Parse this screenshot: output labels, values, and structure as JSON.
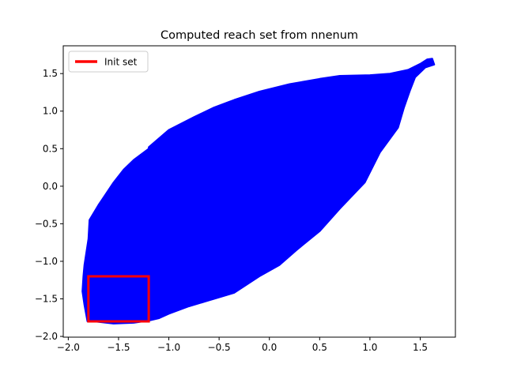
{
  "chart_data": {
    "type": "area",
    "title": "Computed reach set from nnenum",
    "xlabel": "",
    "ylabel": "",
    "xlim": [
      -2.05,
      1.85
    ],
    "ylim": [
      -2.01,
      1.87
    ],
    "xticks": [
      -2.0,
      -1.5,
      -1.0,
      -0.5,
      0.0,
      0.5,
      1.0,
      1.5
    ],
    "xtick_labels": [
      "−2.0",
      "−1.5",
      "−1.0",
      "−0.5",
      "0.0",
      "0.5",
      "1.0",
      "1.5"
    ],
    "yticks": [
      -2.0,
      -1.5,
      -1.0,
      -0.5,
      0.0,
      0.5,
      1.0,
      1.5
    ],
    "ytick_labels": [
      "−2.0",
      "−1.5",
      "−1.0",
      "−0.5",
      "0.0",
      "0.5",
      "1.0",
      "1.5"
    ],
    "grid": false,
    "legend_position": "top-left",
    "legend": [
      {
        "label": "Init set",
        "color": "#ff0000"
      }
    ],
    "reach_set": {
      "color": "#0000ff",
      "boundary": [
        [
          -1.81,
          -1.8
        ],
        [
          -1.84,
          -1.58
        ],
        [
          -1.86,
          -1.4
        ],
        [
          -1.85,
          -1.2
        ],
        [
          -1.84,
          -1.05
        ],
        [
          -1.8,
          -0.7
        ],
        [
          -1.79,
          -0.45
        ],
        [
          -1.7,
          -0.25
        ],
        [
          -1.55,
          0.05
        ],
        [
          -1.45,
          0.22
        ],
        [
          -1.35,
          0.35
        ],
        [
          -1.2,
          0.5
        ],
        [
          -1.2,
          0.52
        ],
        [
          -1.0,
          0.75
        ],
        [
          -0.75,
          0.92
        ],
        [
          -0.55,
          1.05
        ],
        [
          -0.35,
          1.15
        ],
        [
          -0.1,
          1.26
        ],
        [
          0.2,
          1.36
        ],
        [
          0.5,
          1.43
        ],
        [
          0.7,
          1.47
        ],
        [
          1.0,
          1.48
        ],
        [
          1.2,
          1.5
        ],
        [
          1.38,
          1.55
        ],
        [
          1.5,
          1.63
        ],
        [
          1.57,
          1.69
        ],
        [
          1.62,
          1.7
        ],
        [
          1.64,
          1.62
        ],
        [
          1.55,
          1.58
        ],
        [
          1.45,
          1.45
        ],
        [
          1.4,
          1.28
        ],
        [
          1.34,
          1.05
        ],
        [
          1.28,
          0.78
        ],
        [
          1.1,
          0.45
        ],
        [
          0.95,
          0.05
        ],
        [
          0.7,
          -0.3
        ],
        [
          0.5,
          -0.6
        ],
        [
          0.27,
          -0.85
        ],
        [
          0.1,
          -1.05
        ],
        [
          -0.1,
          -1.2
        ],
        [
          -0.35,
          -1.42
        ],
        [
          -0.55,
          -1.5
        ],
        [
          -0.8,
          -1.6
        ],
        [
          -1.0,
          -1.7
        ],
        [
          -1.1,
          -1.76
        ],
        [
          -1.2,
          -1.79
        ],
        [
          -1.35,
          -1.82
        ],
        [
          -1.55,
          -1.83
        ],
        [
          -1.75,
          -1.8
        ]
      ]
    },
    "init_set": {
      "color": "#ff0000",
      "x_range": [
        -1.8,
        -1.2
      ],
      "y_range": [
        -1.8,
        -1.2
      ]
    }
  }
}
